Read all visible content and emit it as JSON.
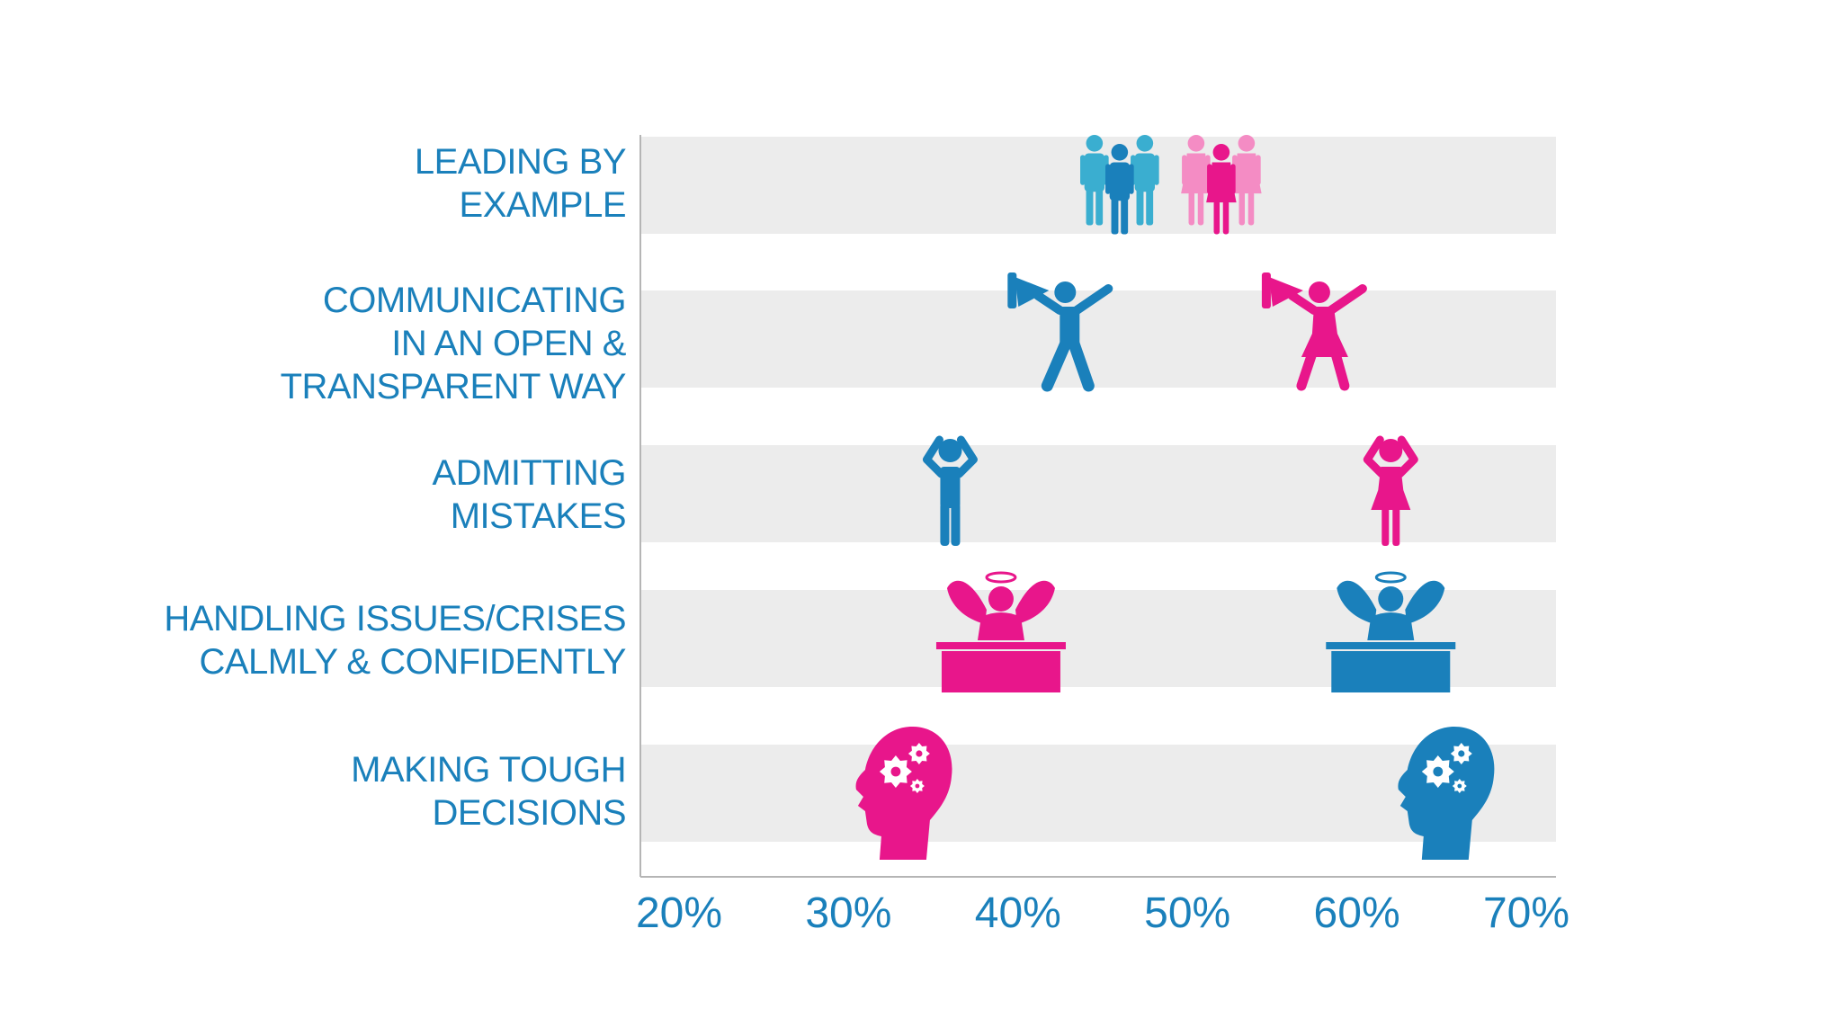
{
  "chart_data": {
    "type": "scatter",
    "title": "",
    "xlabel": "",
    "ylabel": "",
    "xlim": [
      20,
      70
    ],
    "x_ticks": [
      "20%",
      "30%",
      "40%",
      "50%",
      "60%",
      "70%"
    ],
    "grid": false,
    "legend": "none",
    "categories": [
      {
        "lines": [
          "LEADING BY",
          "EXAMPLE"
        ]
      },
      {
        "lines": [
          "COMMUNICATING",
          "IN AN OPEN &",
          "TRANSPARENT WAY"
        ]
      },
      {
        "lines": [
          "ADMITTING",
          "MISTAKES"
        ]
      },
      {
        "lines": [
          "HANDLING ISSUES/CRISES",
          "CALMLY & CONFIDENTLY"
        ]
      },
      {
        "lines": [
          "MAKING TOUGH",
          "DECISIONS"
        ]
      }
    ],
    "series": [
      {
        "icon": "men-group-icon",
        "color": "#1a80bb",
        "values": [
          46,
          43,
          36,
          62,
          65
        ]
      },
      {
        "icon": "women-group-icon",
        "color": "#e8168b",
        "values": [
          52,
          58,
          62,
          39,
          33
        ]
      }
    ],
    "markers": [
      {
        "row": 0,
        "x": 46,
        "color": "#1a80bb",
        "icon": "people-group-icon"
      },
      {
        "row": 0,
        "x": 52,
        "color": "#e8168b",
        "icon": "people-group-icon"
      },
      {
        "row": 1,
        "x": 43,
        "color": "#1a80bb",
        "icon": "megaphone-person-icon"
      },
      {
        "row": 1,
        "x": 58,
        "color": "#e8168b",
        "icon": "megaphone-person-icon"
      },
      {
        "row": 2,
        "x": 36,
        "color": "#1a80bb",
        "icon": "hands-on-head-person-icon"
      },
      {
        "row": 2,
        "x": 62,
        "color": "#e8168b",
        "icon": "hands-on-head-person-icon"
      },
      {
        "row": 3,
        "x": 39,
        "color": "#e8168b",
        "icon": "angel-at-desk-icon"
      },
      {
        "row": 3,
        "x": 62,
        "color": "#1a80bb",
        "icon": "angel-at-desk-icon"
      },
      {
        "row": 4,
        "x": 33,
        "color": "#e8168b",
        "icon": "thinking-head-gears-icon"
      },
      {
        "row": 4,
        "x": 65,
        "color": "#1a80bb",
        "icon": "thinking-head-gears-icon"
      }
    ]
  },
  "colors": {
    "men": "#1a80bb",
    "men_light": "#3aaed0",
    "women": "#e8168b",
    "women_light": "#f48cc4",
    "band": "#ececec",
    "axis": "#b5b5b5",
    "text": "#1a80bb"
  }
}
